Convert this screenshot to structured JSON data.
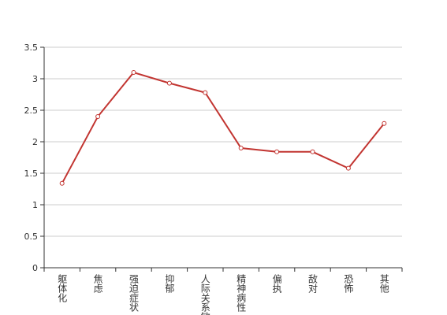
{
  "chart_data": {
    "type": "line",
    "categories": [
      "躯体化",
      "焦虑",
      "强迫症状",
      "抑郁",
      "人际关系敏感",
      "精神病性",
      "偏执",
      "敌对",
      "恐怖",
      "其他"
    ],
    "values": [
      1.34,
      2.4,
      3.1,
      2.93,
      2.78,
      1.9,
      1.84,
      1.84,
      1.58,
      2.29
    ],
    "color": "#c23531",
    "ylim": [
      0,
      3.5
    ],
    "yticks": [
      0,
      0.5,
      1,
      1.5,
      2,
      2.5,
      3,
      3.5
    ],
    "grid": true
  }
}
